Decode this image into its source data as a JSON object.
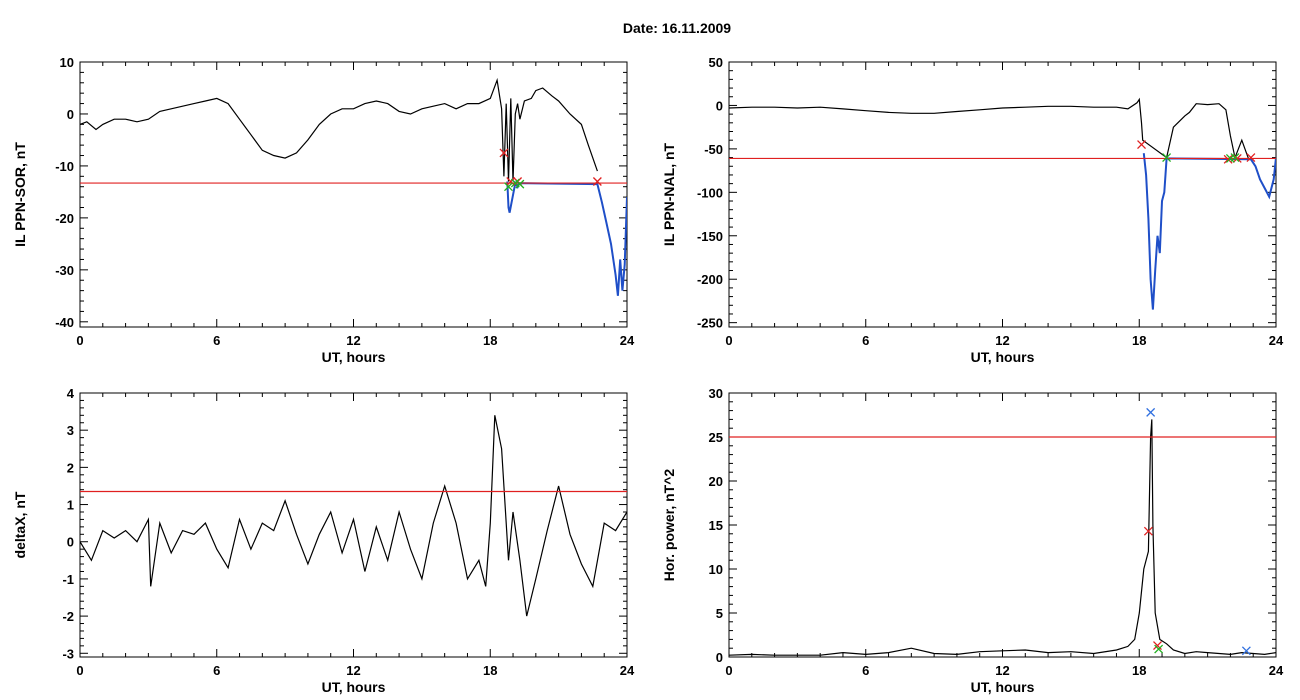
{
  "page_title": "Date:  16.11.2009",
  "chart_data": [
    {
      "id": "p1",
      "type": "line",
      "xlabel": "UT, hours",
      "ylabel": "IL PPN-SOR, nT",
      "xlim": [
        0,
        24
      ],
      "ylim": [
        -41,
        10
      ],
      "xticks": [
        0,
        6,
        12,
        18,
        24
      ],
      "yticks": [
        -40,
        -30,
        -20,
        -10,
        0,
        10
      ],
      "threshold": -13.3,
      "series": [
        {
          "color": "#000000",
          "x": [
            0,
            0.3,
            0.7,
            1,
            1.5,
            2,
            2.5,
            3,
            3.5,
            4,
            4.5,
            5,
            5.5,
            6,
            6.5,
            7,
            7.5,
            8,
            8.5,
            9,
            9.5,
            10,
            10.5,
            11,
            11.5,
            12,
            12.5,
            13,
            13.5,
            14,
            14.5,
            15,
            15.5,
            16,
            16.5,
            17,
            17.5,
            18,
            18.3,
            18.5,
            18.6,
            18.7,
            18.8,
            18.9,
            19,
            19.1,
            19.2,
            19.3,
            19.5,
            19.8,
            20,
            20.3,
            20.7,
            21,
            21.5,
            22,
            22.3,
            22.7
          ],
          "y": [
            -2,
            -1.5,
            -3,
            -2,
            -1,
            -1,
            -1.5,
            -1,
            0.5,
            1,
            1.5,
            2,
            2.5,
            3,
            2,
            -1,
            -4,
            -7,
            -8,
            -8.5,
            -7.5,
            -5,
            -2,
            0,
            1,
            1,
            2,
            2.5,
            2,
            0.5,
            0,
            1,
            1.5,
            2,
            1,
            2,
            2,
            3,
            6.5,
            1,
            -12,
            2,
            -13,
            3,
            -13,
            0,
            2,
            -1,
            2.5,
            3,
            4.5,
            5,
            3.5,
            2.5,
            0,
            -2,
            -6,
            -11
          ]
        },
        {
          "color": "#1f4fc8",
          "x": [
            18.75,
            18.8,
            18.85,
            19.1,
            19.2,
            19.25,
            22.7,
            22.9,
            23.1,
            23.3,
            23.5,
            23.6,
            23.7,
            23.8,
            23.9,
            24
          ],
          "y": [
            -13,
            -18,
            -19,
            -13.3,
            -14,
            -13.3,
            -13.5,
            -17,
            -21,
            -25,
            -31,
            -35,
            -28,
            -34,
            -29,
            -16
          ]
        }
      ],
      "markers": [
        {
          "color": "#e02020",
          "points": [
            [
              18.6,
              -7.5
            ],
            [
              18.9,
              -13
            ],
            [
              19.2,
              -13
            ],
            [
              22.7,
              -13
            ]
          ]
        },
        {
          "color": "#20b020",
          "points": [
            [
              18.8,
              -14
            ],
            [
              19.1,
              -13.3
            ],
            [
              19.3,
              -13.5
            ]
          ]
        }
      ]
    },
    {
      "id": "p2",
      "type": "line",
      "xlabel": "UT, hours",
      "ylabel": "IL PPN-NAL, nT",
      "xlim": [
        0,
        24
      ],
      "ylim": [
        -255,
        50
      ],
      "xticks": [
        0,
        6,
        12,
        18,
        24
      ],
      "yticks": [
        -250,
        -200,
        -150,
        -100,
        -50,
        0,
        50
      ],
      "threshold": -61,
      "series": [
        {
          "color": "#000000",
          "x": [
            0,
            1,
            2,
            3,
            4,
            5,
            6,
            7,
            8,
            9,
            10,
            11,
            12,
            13,
            14,
            15,
            16,
            17,
            17.5,
            17.9,
            18,
            18.1,
            18.15,
            19.2,
            19.5,
            20,
            20.2,
            20.5,
            21,
            21.5,
            21.8,
            22,
            22.2,
            22.5,
            22.8
          ],
          "y": [
            -3,
            -2,
            -2,
            -3,
            -2,
            -4,
            -6,
            -8,
            -9,
            -9,
            -7,
            -5,
            -3,
            -2,
            -1,
            -1,
            -2,
            -2,
            -4,
            3,
            7,
            -20,
            -40,
            -60,
            -25,
            -12,
            -8,
            2,
            1,
            2,
            -5,
            -35,
            -60,
            -40,
            -62
          ]
        },
        {
          "color": "#1f4fc8",
          "x": [
            18.2,
            18.3,
            18.4,
            18.5,
            18.6,
            18.7,
            18.8,
            18.9,
            19,
            19.1,
            19.2,
            22.9,
            23.1,
            23.3,
            23.5,
            23.7,
            23.9,
            24
          ],
          "y": [
            -55,
            -80,
            -130,
            -200,
            -235,
            -190,
            -150,
            -170,
            -110,
            -100,
            -61,
            -62,
            -70,
            -85,
            -95,
            -105,
            -85,
            -60
          ]
        }
      ],
      "markers": [
        {
          "color": "#e02020",
          "points": [
            [
              18.1,
              -45
            ],
            [
              21.9,
              -62
            ],
            [
              22.3,
              -61
            ],
            [
              22.9,
              -60
            ]
          ]
        },
        {
          "color": "#20b020",
          "points": [
            [
              19.2,
              -60
            ],
            [
              22.0,
              -61
            ],
            [
              22.2,
              -60
            ]
          ]
        }
      ]
    },
    {
      "id": "p3",
      "type": "line",
      "xlabel": "UT, hours",
      "ylabel": "deltaX, nT",
      "xlim": [
        0,
        24
      ],
      "ylim": [
        -3.1,
        4
      ],
      "xticks": [
        0,
        6,
        12,
        18,
        24
      ],
      "yticks": [
        -3,
        -2,
        -1,
        0,
        1,
        2,
        3,
        4
      ],
      "threshold": 1.35,
      "series": [
        {
          "color": "#000000",
          "x": [
            0,
            0.5,
            1,
            1.5,
            2,
            2.5,
            3,
            3.1,
            3.5,
            4,
            4.5,
            5,
            5.5,
            6,
            6.5,
            7,
            7.5,
            8,
            8.5,
            9,
            9.5,
            10,
            10.5,
            11,
            11.5,
            12,
            12.5,
            13,
            13.5,
            14,
            14.5,
            15,
            15.5,
            16,
            16.5,
            17,
            17.5,
            17.8,
            18,
            18.2,
            18.5,
            18.8,
            19,
            19.3,
            19.6,
            20,
            20.5,
            21,
            21.5,
            22,
            22.5,
            23,
            23.5,
            24
          ],
          "y": [
            0,
            -0.5,
            0.3,
            0.1,
            0.3,
            0,
            0.6,
            -1.2,
            0.5,
            -0.3,
            0.3,
            0.2,
            0.5,
            -0.2,
            -0.7,
            0.6,
            -0.2,
            0.5,
            0.3,
            1.1,
            0.2,
            -0.6,
            0.2,
            0.8,
            -0.3,
            0.6,
            -0.8,
            0.4,
            -0.5,
            0.8,
            -0.2,
            -1.0,
            0.5,
            1.5,
            0.5,
            -1.0,
            -0.5,
            -1.2,
            0.5,
            3.4,
            2.5,
            -0.5,
            0.8,
            -0.5,
            -2.0,
            -1.0,
            0.3,
            1.5,
            0.2,
            -0.6,
            -1.2,
            0.5,
            0.3,
            0.8
          ]
        }
      ],
      "markers": []
    },
    {
      "id": "p4",
      "type": "line",
      "xlabel": "UT, hours",
      "ylabel": "Hor. power, nT^2",
      "xlim": [
        0,
        24
      ],
      "ylim": [
        0,
        30
      ],
      "xticks": [
        0,
        6,
        12,
        18,
        24
      ],
      "yticks": [
        0,
        5,
        10,
        15,
        20,
        25,
        30
      ],
      "threshold": 25,
      "series": [
        {
          "color": "#000000",
          "x": [
            0,
            1,
            2,
            3,
            4,
            5,
            6,
            7,
            8,
            9,
            10,
            11,
            12,
            13,
            14,
            15,
            16,
            17,
            17.5,
            17.8,
            18,
            18.2,
            18.4,
            18.5,
            18.55,
            18.6,
            18.7,
            18.9,
            19.2,
            19.5,
            20,
            20.5,
            21,
            21.5,
            22,
            22.5,
            23,
            23.5,
            24
          ],
          "y": [
            0.2,
            0.3,
            0.2,
            0.2,
            0.2,
            0.5,
            0.3,
            0.5,
            1.0,
            0.4,
            0.3,
            0.6,
            0.7,
            0.8,
            0.5,
            0.6,
            0.4,
            0.8,
            1.2,
            2,
            5,
            10,
            12,
            25,
            27,
            15,
            5,
            2,
            1.5,
            0.8,
            0.4,
            0.6,
            0.5,
            0.4,
            0.3,
            0.5,
            0.4,
            0.3,
            0.5
          ]
        }
      ],
      "markers": [
        {
          "color": "#3070e0",
          "points": [
            [
              18.5,
              27.8
            ],
            [
              22.7,
              0.7
            ]
          ]
        },
        {
          "color": "#e02020",
          "points": [
            [
              18.4,
              14.3
            ],
            [
              18.8,
              1.3
            ]
          ]
        },
        {
          "color": "#20b020",
          "points": [
            [
              18.85,
              0.9
            ]
          ]
        }
      ]
    }
  ]
}
